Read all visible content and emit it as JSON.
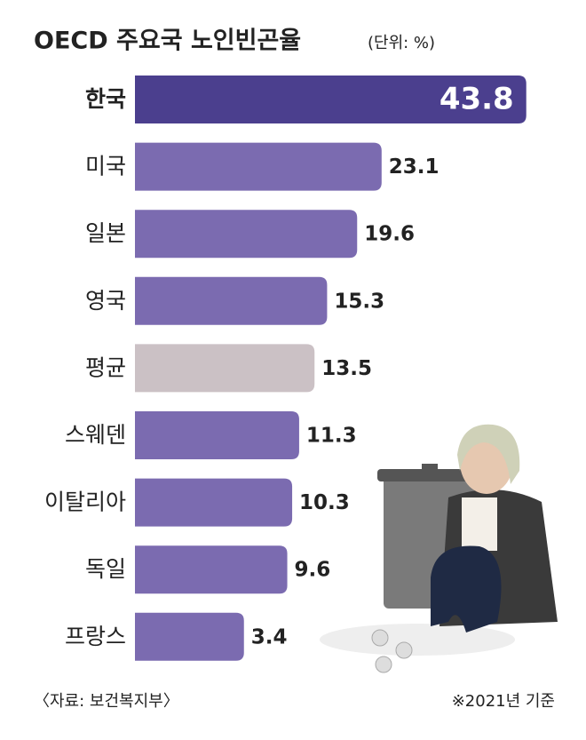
{
  "chart_data": {
    "type": "bar",
    "orientation": "horizontal",
    "title": "OECD 주요국 노인빈곤율",
    "subtitle": "(단위: %)",
    "categories": [
      "한국",
      "미국",
      "일본",
      "영국",
      "평균",
      "스웨덴",
      "이탈리아",
      "독일",
      "프랑스"
    ],
    "values": [
      43.8,
      23.1,
      19.6,
      15.3,
      13.5,
      11.3,
      10.3,
      9.6,
      3.4
    ],
    "colors": [
      "#4b3f8e",
      "#7b6bb0",
      "#7b6bb0",
      "#7b6bb0",
      "#cbc1c5",
      "#7b6bb0",
      "#7b6bb0",
      "#7b6bb0",
      "#7b6bb0"
    ],
    "source": "〈자료: 보건복지부〉",
    "note": "※2021년 기준"
  }
}
